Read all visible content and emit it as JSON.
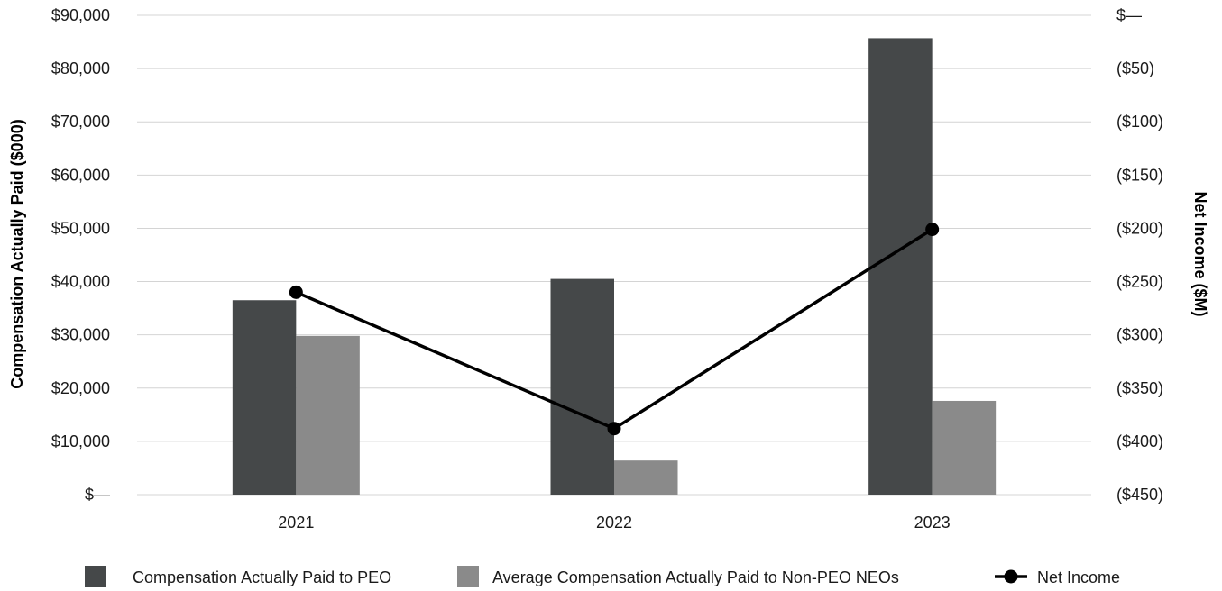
{
  "chart_data": {
    "type": "bar",
    "categories": [
      "2021",
      "2022",
      "2023"
    ],
    "series": [
      {
        "name": "Compensation Actually Paid to PEO",
        "kind": "bar",
        "axis": "left",
        "color": "#454849",
        "values": [
          36500,
          40500,
          85700
        ]
      },
      {
        "name": "Average Compensation Actually Paid to Non-PEO NEOs",
        "kind": "bar",
        "axis": "left",
        "color": "#8a8a8a",
        "values": [
          29800,
          6400,
          17600
        ]
      },
      {
        "name": "Net Income",
        "kind": "line",
        "axis": "right",
        "color": "#000000",
        "values": [
          -260,
          -388,
          -201
        ]
      }
    ],
    "left_axis": {
      "label": "Compensation Actually Paid ($000)",
      "ylim": [
        0,
        90000
      ],
      "ticks": [
        0,
        10000,
        20000,
        30000,
        40000,
        50000,
        60000,
        70000,
        80000,
        90000
      ],
      "tick_labels": [
        "$—",
        "$10,000",
        "$20,000",
        "$30,000",
        "$40,000",
        "$50,000",
        "$60,000",
        "$70,000",
        "$80,000",
        "$90,000"
      ]
    },
    "right_axis": {
      "label": "Net Income ($M)",
      "ylim": [
        -450,
        0
      ],
      "ticks": [
        -450,
        -400,
        -350,
        -300,
        -250,
        -200,
        -150,
        -100,
        -50,
        0
      ],
      "tick_labels": [
        "($450)",
        "($400)",
        "($350)",
        "($300)",
        "($250)",
        "($200)",
        "($150)",
        "($100)",
        "($50)",
        "$—"
      ]
    },
    "grid": true,
    "legend_position": "bottom"
  }
}
